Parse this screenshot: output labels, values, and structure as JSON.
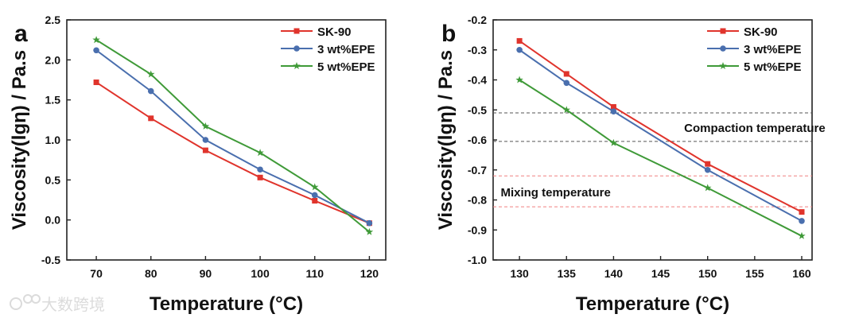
{
  "watermark": "大数跨境",
  "colors": {
    "SK-90": "#e0342c",
    "3 wt%EPE": "#4a6fae",
    "5 wt%EPE": "#3f9a38",
    "gray_dash": "#555555",
    "red_dash": "#f08080"
  },
  "chart_data": [
    {
      "type": "line",
      "panel_label": "a",
      "xlabel": "Temperature (°C)",
      "ylabel": "Viscosity(lgη) / Pa.s",
      "xlim": [
        64.6,
        123
      ],
      "ylim": [
        -0.5,
        2.5
      ],
      "xticks": [
        70,
        80,
        90,
        100,
        110,
        120
      ],
      "yticks": [
        -0.5,
        0.0,
        0.5,
        1.0,
        1.5,
        2.0,
        2.5
      ],
      "ytick_labels": [
        "-0.5",
        "0.0",
        "0.5",
        "1.0",
        "1.5",
        "2.0",
        "2.5"
      ],
      "legend": "top-right",
      "x": [
        70,
        80,
        90,
        100,
        110,
        120
      ],
      "series": [
        {
          "name": "SK-90",
          "marker": "square",
          "values": [
            1.72,
            1.27,
            0.87,
            0.53,
            0.24,
            -0.04
          ]
        },
        {
          "name": "3 wt%EPE",
          "marker": "circle",
          "values": [
            2.12,
            1.61,
            1.0,
            0.63,
            0.31,
            -0.04
          ]
        },
        {
          "name": "5 wt%EPE",
          "marker": "star",
          "values": [
            2.25,
            1.82,
            1.17,
            0.84,
            0.41,
            -0.15
          ]
        }
      ],
      "hlines": [],
      "annotations": []
    },
    {
      "type": "line",
      "panel_label": "b",
      "xlabel": "Temperature (°C)",
      "ylabel": "Viscosity(lgη) / Pa.s",
      "xlim": [
        127.2,
        161.1
      ],
      "ylim": [
        -1.0,
        -0.2
      ],
      "xticks": [
        130,
        135,
        140,
        145,
        150,
        155,
        160
      ],
      "yticks": [
        -1.0,
        -0.9,
        -0.8,
        -0.7,
        -0.6,
        -0.5,
        -0.4,
        -0.3,
        -0.2
      ],
      "ytick_labels": [
        "-1.0",
        "-0.9",
        "-0.8",
        "-0.7",
        "-0.6",
        "-0.5",
        "-0.4",
        "-0.3",
        "-0.2"
      ],
      "legend": "top-right",
      "x": [
        130,
        135,
        140,
        150,
        160
      ],
      "series": [
        {
          "name": "SK-90",
          "marker": "square",
          "values": [
            -0.27,
            -0.38,
            -0.49,
            -0.68,
            -0.84
          ]
        },
        {
          "name": "3 wt%EPE",
          "marker": "circle",
          "values": [
            -0.3,
            -0.41,
            -0.505,
            -0.7,
            -0.87
          ]
        },
        {
          "name": "5 wt%EPE",
          "marker": "star",
          "values": [
            -0.4,
            -0.5,
            -0.61,
            -0.76,
            -0.92
          ]
        }
      ],
      "hlines": [
        {
          "y": -0.51,
          "color": "gray"
        },
        {
          "y": -0.605,
          "color": "gray"
        },
        {
          "y": -0.72,
          "color": "red"
        },
        {
          "y": -0.823,
          "color": "red"
        }
      ],
      "annotations": [
        {
          "text": "Compaction temperature",
          "x": 147.5,
          "y": -0.557
        },
        {
          "text": "Mixing temperature",
          "x": 128,
          "y": -0.772
        }
      ]
    }
  ]
}
